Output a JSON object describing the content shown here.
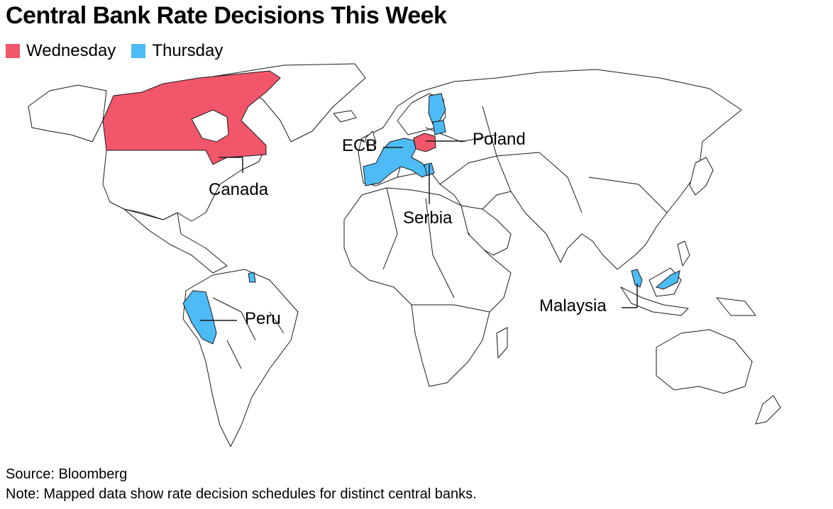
{
  "title": "Central Bank Rate Decisions This Week",
  "legend": {
    "items": [
      {
        "label": "Wednesday",
        "color": "#f2566a"
      },
      {
        "label": "Thursday",
        "color": "#4dbbf5"
      }
    ]
  },
  "map": {
    "land_color": "#ffffff",
    "border_color": "#1a1a1a",
    "regions": [
      {
        "name": "Canada",
        "day": "Wednesday"
      },
      {
        "name": "Poland",
        "day": "Wednesday"
      },
      {
        "name": "ECB",
        "day": "Thursday"
      },
      {
        "name": "Serbia",
        "day": "Thursday"
      },
      {
        "name": "Peru",
        "day": "Thursday"
      },
      {
        "name": "Malaysia",
        "day": "Thursday"
      }
    ],
    "callouts": {
      "canada": "Canada",
      "poland": "Poland",
      "ecb": "ECB",
      "serbia": "Serbia",
      "peru": "Peru",
      "malaysia": "Malaysia"
    }
  },
  "footer": {
    "source": "Source: Bloomberg",
    "note": "Note: Mapped data show rate decision schedules for distinct central banks."
  }
}
